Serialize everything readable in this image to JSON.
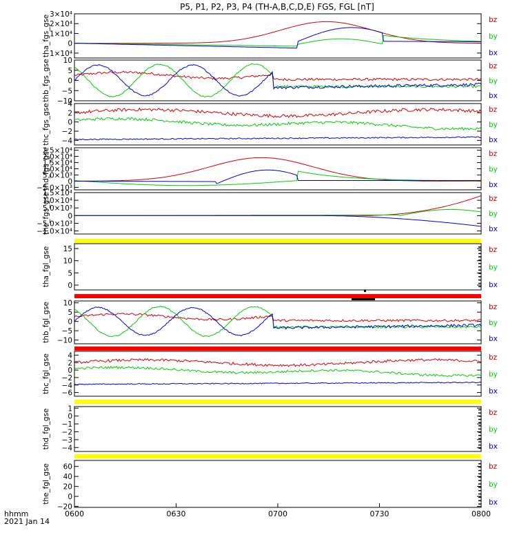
{
  "title": "P5, P1, P2, P3, P4 (TH-A,B,C,D,E) FGS, FGL [nT]",
  "footer": {
    "label": "hhmm",
    "date": "2021 Jan 14"
  },
  "colors": {
    "bz": "#cc0000",
    "by": "#00cc00",
    "bx": "#0000cc",
    "flag_yellow": "#ffff00",
    "flag_red": "#ff0000",
    "flag_black": "#000000"
  },
  "chart_data": {
    "type": "line",
    "x_axis": {
      "range": [
        "0600",
        "0800"
      ],
      "ticks": [
        "0600",
        "0630",
        "0700",
        "0730",
        "0800"
      ]
    },
    "panels": [
      {
        "ylabel": "tha_fgs_gse",
        "ylim": [
          -15000,
          30000
        ],
        "ticks": [
          {
            "v": 30000,
            "label": "3×10⁴"
          },
          {
            "v": 20000,
            "label": "2×10⁴"
          },
          {
            "v": 10000,
            "label": "1×10⁴"
          },
          {
            "v": 0,
            "label": "0"
          },
          {
            "v": -10000,
            "label": "−1×10⁴"
          }
        ],
        "shape": "tha_fgs",
        "legend": [
          "bz",
          "by",
          "bx"
        ]
      },
      {
        "ylabel": "thb_fgs_gse",
        "ylim": [
          -10,
          10
        ],
        "ticks": [
          {
            "v": 10,
            "label": "10"
          },
          {
            "v": 5,
            "label": "5"
          },
          {
            "v": 0,
            "label": "0"
          },
          {
            "v": -5,
            "label": "−5"
          },
          {
            "v": -10,
            "label": "−10"
          }
        ],
        "shape": "thb",
        "legend": [
          "bz",
          "by",
          "bx"
        ]
      },
      {
        "ylabel": "thc_fgs_gse",
        "ylim": [
          -5,
          4
        ],
        "ticks": [
          {
            "v": 4,
            "label": "4"
          },
          {
            "v": 2,
            "label": "2"
          },
          {
            "v": 0,
            "label": "0"
          },
          {
            "v": -2,
            "label": "−2"
          },
          {
            "v": -4,
            "label": "−4"
          }
        ],
        "shape": "thc",
        "legend": [
          "bz",
          "by",
          "bx"
        ]
      },
      {
        "ylabel": "thd_fgs_gse",
        "ylim": [
          -7000,
          27000
        ],
        "ticks": [
          {
            "v": 25000,
            "label": "2.5×10⁴"
          },
          {
            "v": 20000,
            "label": "2.0×10⁴"
          },
          {
            "v": 15000,
            "label": "1.5×10⁴"
          },
          {
            "v": 10000,
            "label": "1.0×10⁴"
          },
          {
            "v": 5000,
            "label": "5.0×10³"
          },
          {
            "v": 0,
            "label": "0"
          },
          {
            "v": -5000,
            "label": "−5.0×10³"
          }
        ],
        "shape": "thd_fgs",
        "legend": [
          "bz",
          "by",
          "bx"
        ]
      },
      {
        "ylabel": "the_fgs_gse",
        "ylim": [
          -12000,
          15000
        ],
        "ticks": [
          {
            "v": 15000,
            "label": "1.5×10⁴"
          },
          {
            "v": 10000,
            "label": "1.0×10⁴"
          },
          {
            "v": 5000,
            "label": "5.0×10³"
          },
          {
            "v": 0,
            "label": "0"
          },
          {
            "v": -5000,
            "label": "−5.0×10³"
          },
          {
            "v": -10000,
            "label": "−1.0×10⁴"
          }
        ],
        "shape": "the_fgs",
        "legend": [
          "bz",
          "by",
          "bx"
        ]
      },
      {
        "ylabel": "tha_fgl_gse",
        "ylim": [
          -2,
          17
        ],
        "ticks": [
          {
            "v": 15,
            "label": "15"
          },
          {
            "v": 10,
            "label": "10"
          },
          {
            "v": 5,
            "label": "5"
          },
          {
            "v": 0,
            "label": "0"
          }
        ],
        "shape": "empty",
        "legend": [
          "bz",
          "by",
          "bx"
        ]
      },
      {
        "ylabel": "thb_fgl_gse",
        "ylim": [
          -12,
          11
        ],
        "ticks": [
          {
            "v": 10,
            "label": "10"
          },
          {
            "v": 5,
            "label": "5"
          },
          {
            "v": 0,
            "label": "0"
          },
          {
            "v": -5,
            "label": "−5"
          },
          {
            "v": -10,
            "label": "−10"
          }
        ],
        "shape": "thb",
        "legend": [
          "bz",
          "by",
          "bx"
        ]
      },
      {
        "ylabel": "thc_fgl_gse",
        "ylim": [
          -7,
          5
        ],
        "ticks": [
          {
            "v": 4,
            "label": "4"
          },
          {
            "v": 2,
            "label": "2"
          },
          {
            "v": 0,
            "label": "0"
          },
          {
            "v": -2,
            "label": "−2"
          },
          {
            "v": -4,
            "label": "−4"
          },
          {
            "v": -6,
            "label": "−6"
          }
        ],
        "shape": "thc",
        "legend": [
          "bz",
          "by",
          "bx"
        ]
      },
      {
        "ylabel": "thd_fgl_gse",
        "ylim": [
          -4.5,
          1.2
        ],
        "ticks": [
          {
            "v": 1,
            "label": "1"
          },
          {
            "v": 0,
            "label": "0"
          },
          {
            "v": -1,
            "label": "−1"
          },
          {
            "v": -2,
            "label": "−2"
          },
          {
            "v": -3,
            "label": "−3"
          },
          {
            "v": -4,
            "label": "−4"
          }
        ],
        "shape": "empty",
        "legend": [
          "bz",
          "by",
          "bx"
        ]
      },
      {
        "ylabel": "the_fgl_gse",
        "ylim": [
          -22,
          72
        ],
        "ticks": [
          {
            "v": 60,
            "label": "60"
          },
          {
            "v": 40,
            "label": "40"
          },
          {
            "v": 20,
            "label": "20"
          },
          {
            "v": 0,
            "label": "0"
          },
          {
            "v": -20,
            "label": "−20"
          }
        ],
        "shape": "empty",
        "legend": [
          "bz",
          "by",
          "bx"
        ]
      }
    ],
    "series_names": [
      "bz",
      "by",
      "bx"
    ],
    "flag_bars": [
      {
        "color": "yellow"
      },
      {
        "color": "red"
      },
      {
        "color": "red"
      },
      {
        "color": "yellow"
      },
      {
        "color": "yellow"
      }
    ]
  }
}
